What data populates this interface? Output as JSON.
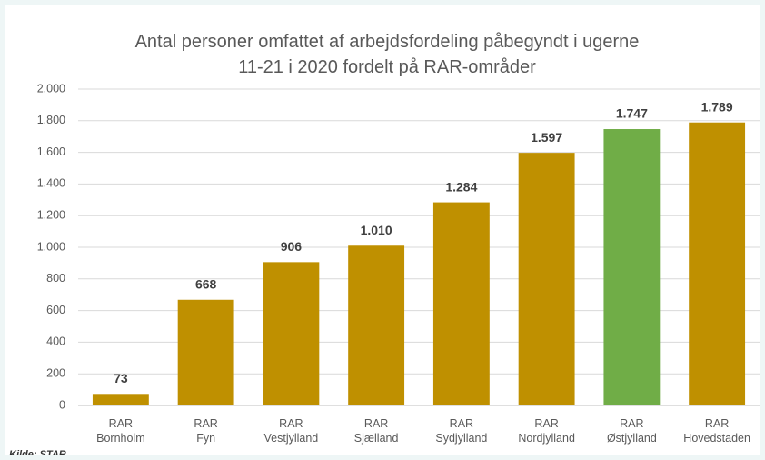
{
  "chart_data": {
    "type": "bar",
    "title": "Antal personer omfattet af arbejdsfordeling påbegyndt i ugerne 11-21 i 2020 fordelt på RAR-områder",
    "categories": [
      "RAR Bornholm",
      "RAR Fyn",
      "RAR Vestjylland",
      "RAR Sjælland",
      "RAR Sydjylland",
      "RAR Nordjylland",
      "RAR Østjylland",
      "RAR Hovedstaden"
    ],
    "values": [
      73,
      668,
      906,
      1010,
      1284,
      1597,
      1747,
      1789
    ],
    "value_labels": [
      "73",
      "668",
      "906",
      "1.010",
      "1.284",
      "1.597",
      "1.747",
      "1.789"
    ],
    "colors": [
      "#bf9000",
      "#bf9000",
      "#bf9000",
      "#bf9000",
      "#bf9000",
      "#bf9000",
      "#70ad47",
      "#bf9000"
    ],
    "ylim": [
      0,
      2000
    ],
    "yticks": [
      0,
      200,
      400,
      600,
      800,
      {
        "value": 1000,
        "label": "1.000"
      },
      {
        "value": 1200,
        "label": "1.200"
      },
      {
        "value": 1400,
        "label": "1.400"
      },
      {
        "value": 1600,
        "label": "1.600"
      },
      {
        "value": 1800,
        "label": "1.800"
      },
      {
        "value": 2000,
        "label": "2.000"
      }
    ],
    "grid": true,
    "source": "Kilde: STAR"
  }
}
